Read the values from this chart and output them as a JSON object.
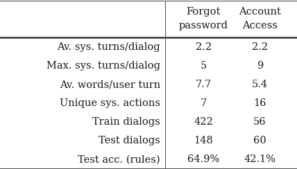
{
  "col_headers": [
    "Forgot\npassword",
    "Account\nAccess"
  ],
  "row_labels": [
    "Av. sys. turns/dialog",
    "Max. sys. turns/dialog",
    "Av. words/user turn",
    "Unique sys. actions",
    "Train dialogs",
    "Test dialogs",
    "Test acc. (rules)"
  ],
  "cell_data": [
    [
      "2.2",
      "2.2"
    ],
    [
      "5",
      "9"
    ],
    [
      "7.7",
      "5.4"
    ],
    [
      "7",
      "16"
    ],
    [
      "422",
      "56"
    ],
    [
      "148",
      "60"
    ],
    [
      "64.9%",
      "42.1%"
    ]
  ],
  "font_size": 10.5,
  "bg_color": "#ffffff",
  "text_color": "#1a1a1a",
  "font_family": "DejaVu Serif"
}
